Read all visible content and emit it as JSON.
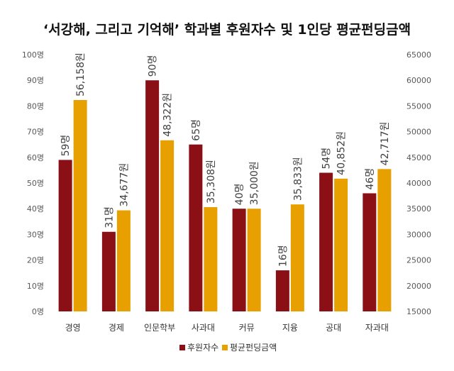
{
  "chart_data": {
    "type": "bar",
    "title": "‘서강해, 그리고 기억해’ 학과별 후원자수 및 1인당 평균펀딩금액",
    "categories": [
      "경영",
      "경제",
      "인문학부",
      "사과대",
      "커뮤",
      "지융",
      "공대",
      "자과대"
    ],
    "series": [
      {
        "name": "후원자수",
        "axis": "left",
        "color": "#8b1016",
        "values": [
          59,
          31,
          90,
          65,
          40,
          16,
          54,
          46
        ],
        "labels": [
          "59명",
          "31명",
          "90명",
          "65명",
          "40명",
          "16명",
          "54명",
          "46명"
        ]
      },
      {
        "name": "평균펀딩금액",
        "axis": "right",
        "color": "#e8a000",
        "values": [
          56158,
          34677,
          48322,
          35308,
          35000,
          35833,
          40852,
          42717
        ],
        "labels": [
          "56,158원",
          "34,677원",
          "48,322원",
          "35,308원",
          "35,000원",
          "35,833원",
          "40,852원",
          "42,717원"
        ]
      }
    ],
    "y_left": {
      "min": 0,
      "max": 100,
      "ticks": [
        0,
        10,
        20,
        30,
        40,
        50,
        60,
        70,
        80,
        90,
        100
      ],
      "tick_labels": [
        "0명",
        "10명",
        "20명",
        "30명",
        "40명",
        "50명",
        "60명",
        "70명",
        "80명",
        "90명",
        "100명"
      ]
    },
    "y_right": {
      "min": 15000,
      "max": 65000,
      "ticks": [
        15000,
        20000,
        25000,
        30000,
        35000,
        40000,
        45000,
        50000,
        55000,
        60000,
        65000
      ],
      "tick_labels": [
        "15000",
        "20000",
        "25000",
        "30000",
        "35000",
        "40000",
        "45000",
        "50000",
        "55000",
        "60000",
        "65000"
      ]
    },
    "grid": false,
    "legend": "bottom"
  }
}
